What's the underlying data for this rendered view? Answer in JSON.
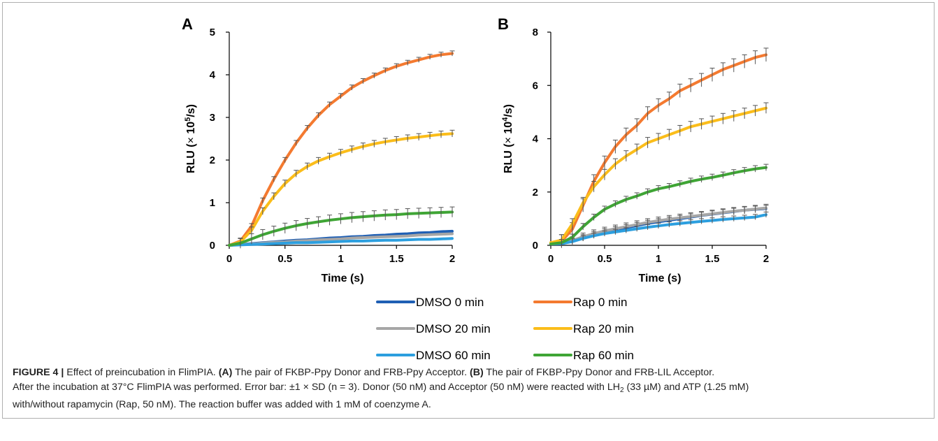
{
  "caption": {
    "label": "FIGURE 4 |",
    "title": " Effect of preincubation in FlimPIA.",
    "a_label": "(A)",
    "a_text": " The pair of FKBP-Ppy Donor and FRB-Ppy Acceptor.",
    "b_label": "(B)",
    "b_text": " The pair of FKBP-Ppy Donor and FRB-LIL Acceptor.",
    "line2": "After the incubation at 37°C FlimPIA was performed. Error bar: ±1 × SD (n = 3). Donor (50 nM) and Acceptor (50 nM) were reacted with LH",
    "line2_sub": "2",
    "line2_end": " (33 µM) and ATP (1.25 mM)",
    "line3": "with/without rapamycin (Rap, 50 nM). The reaction buffer was added with 1 mM of coenzyme A."
  },
  "legend": [
    {
      "name": "DMSO 0 min",
      "color": "#1f5fb4"
    },
    {
      "name": "Rap 0 min",
      "color": "#f47a30"
    },
    {
      "name": "DMSO 20 min",
      "color": "#a6a6a6"
    },
    {
      "name": "Rap 20 min",
      "color": "#fbbd1a"
    },
    {
      "name": "DMSO 60 min",
      "color": "#2c9fdf"
    },
    {
      "name": "Rap 60 min",
      "color": "#3fa535"
    }
  ],
  "chart_data": [
    {
      "type": "line",
      "panel": "A",
      "xlabel": "Time (s)",
      "ylabel_main": "RLU (",
      "ylabel_mult": "×",
      "ylabel_base": " 10",
      "ylabel_exp": "5",
      "ylabel_end": "/s)",
      "xlim": [
        0,
        2
      ],
      "ylim": [
        0,
        5
      ],
      "xticks": [
        "0",
        "0.5",
        "1",
        "1.5",
        "2"
      ],
      "yticks": [
        "0",
        "1",
        "2",
        "3",
        "4",
        "5"
      ],
      "x": [
        0,
        0.1,
        0.2,
        0.3,
        0.4,
        0.5,
        0.6,
        0.7,
        0.8,
        0.9,
        1.0,
        1.1,
        1.2,
        1.3,
        1.4,
        1.5,
        1.6,
        1.7,
        1.8,
        1.9,
        2.0
      ],
      "series": [
        {
          "name": "DMSO 0 min",
          "color": "#1f5fb4",
          "values": [
            0,
            0.02,
            0.04,
            0.06,
            0.08,
            0.1,
            0.12,
            0.13,
            0.15,
            0.17,
            0.18,
            0.2,
            0.21,
            0.23,
            0.24,
            0.26,
            0.27,
            0.29,
            0.3,
            0.32,
            0.33
          ],
          "err": null
        },
        {
          "name": "DMSO 20 min",
          "color": "#a6a6a6",
          "values": [
            0,
            0.02,
            0.03,
            0.05,
            0.07,
            0.08,
            0.1,
            0.11,
            0.13,
            0.14,
            0.15,
            0.17,
            0.18,
            0.19,
            0.2,
            0.21,
            0.22,
            0.24,
            0.25,
            0.26,
            0.27
          ],
          "err": null
        },
        {
          "name": "DMSO 60 min",
          "color": "#2c9fdf",
          "values": [
            0,
            0.01,
            0.02,
            0.03,
            0.04,
            0.05,
            0.06,
            0.06,
            0.07,
            0.08,
            0.09,
            0.1,
            0.1,
            0.11,
            0.12,
            0.12,
            0.13,
            0.14,
            0.14,
            0.15,
            0.16
          ],
          "err": null
        },
        {
          "name": "Rap 0 min",
          "color": "#f47a30",
          "values": [
            0,
            0.1,
            0.45,
            1.05,
            1.55,
            2.0,
            2.4,
            2.75,
            3.05,
            3.3,
            3.5,
            3.7,
            3.85,
            3.98,
            4.1,
            4.2,
            4.28,
            4.35,
            4.42,
            4.47,
            4.5
          ],
          "err": 0.06
        },
        {
          "name": "Rap 20 min",
          "color": "#fbbd1a",
          "values": [
            0,
            0.08,
            0.35,
            0.8,
            1.15,
            1.45,
            1.68,
            1.85,
            1.98,
            2.08,
            2.17,
            2.25,
            2.32,
            2.38,
            2.43,
            2.47,
            2.51,
            2.54,
            2.57,
            2.6,
            2.62
          ],
          "err": 0.08
        },
        {
          "name": "Rap 60 min",
          "color": "#3fa535",
          "values": [
            0,
            0.05,
            0.15,
            0.25,
            0.33,
            0.4,
            0.46,
            0.51,
            0.55,
            0.59,
            0.62,
            0.65,
            0.67,
            0.69,
            0.71,
            0.72,
            0.74,
            0.75,
            0.76,
            0.77,
            0.78
          ],
          "err": 0.12
        }
      ]
    },
    {
      "type": "line",
      "panel": "B",
      "xlabel": "Time (s)",
      "ylabel_main": "RLU (",
      "ylabel_mult": "×",
      "ylabel_base": " 10",
      "ylabel_exp": "4",
      "ylabel_end": "/s)",
      "xlim": [
        0,
        2
      ],
      "ylim": [
        0,
        8
      ],
      "xticks": [
        "0",
        "0.5",
        "1",
        "1.5",
        "2"
      ],
      "yticks": [
        "0",
        "2",
        "4",
        "6",
        "8"
      ],
      "x": [
        0,
        0.1,
        0.2,
        0.3,
        0.4,
        0.5,
        0.6,
        0.7,
        0.8,
        0.9,
        1.0,
        1.1,
        1.2,
        1.3,
        1.4,
        1.5,
        1.6,
        1.7,
        1.8,
        1.9,
        2.0
      ],
      "series": [
        {
          "name": "DMSO 0 min",
          "color": "#1f5fb4",
          "values": [
            0.05,
            0.07,
            0.15,
            0.28,
            0.4,
            0.5,
            0.58,
            0.66,
            0.74,
            0.82,
            0.88,
            0.94,
            1.0,
            1.06,
            1.12,
            1.17,
            1.22,
            1.27,
            1.32,
            1.35,
            1.38
          ],
          "err": 0.12
        },
        {
          "name": "DMSO 20 min",
          "color": "#a6a6a6",
          "values": [
            0.05,
            0.08,
            0.18,
            0.32,
            0.44,
            0.54,
            0.62,
            0.7,
            0.78,
            0.86,
            0.92,
            0.98,
            1.03,
            1.08,
            1.13,
            1.18,
            1.23,
            1.28,
            1.32,
            1.36,
            1.4
          ],
          "err": 0.14
        },
        {
          "name": "DMSO 60 min",
          "color": "#2c9fdf",
          "values": [
            0.05,
            0.06,
            0.14,
            0.26,
            0.36,
            0.44,
            0.5,
            0.56,
            0.62,
            0.68,
            0.73,
            0.78,
            0.82,
            0.86,
            0.9,
            0.93,
            0.97,
            1.0,
            1.03,
            1.06,
            1.15
          ],
          "err": 0.1
        },
        {
          "name": "Rap 0 min",
          "color": "#f47a30",
          "values": [
            0.1,
            0.15,
            0.6,
            1.5,
            2.4,
            3.1,
            3.7,
            4.15,
            4.5,
            4.95,
            5.25,
            5.5,
            5.8,
            6.0,
            6.2,
            6.4,
            6.6,
            6.75,
            6.9,
            7.05,
            7.15
          ],
          "err": 0.25
        },
        {
          "name": "Rap 20 min",
          "color": "#fbbd1a",
          "values": [
            0.1,
            0.2,
            0.8,
            1.6,
            2.2,
            2.65,
            3.05,
            3.35,
            3.6,
            3.85,
            4.0,
            4.15,
            4.3,
            4.45,
            4.55,
            4.65,
            4.75,
            4.85,
            4.95,
            5.05,
            5.15
          ],
          "err": 0.2
        },
        {
          "name": "Rap 60 min",
          "color": "#3fa535",
          "values": [
            0.05,
            0.1,
            0.3,
            0.7,
            1.05,
            1.35,
            1.55,
            1.72,
            1.85,
            2.0,
            2.12,
            2.2,
            2.3,
            2.4,
            2.48,
            2.55,
            2.63,
            2.72,
            2.8,
            2.87,
            2.92
          ],
          "err": 0.12
        }
      ]
    }
  ]
}
